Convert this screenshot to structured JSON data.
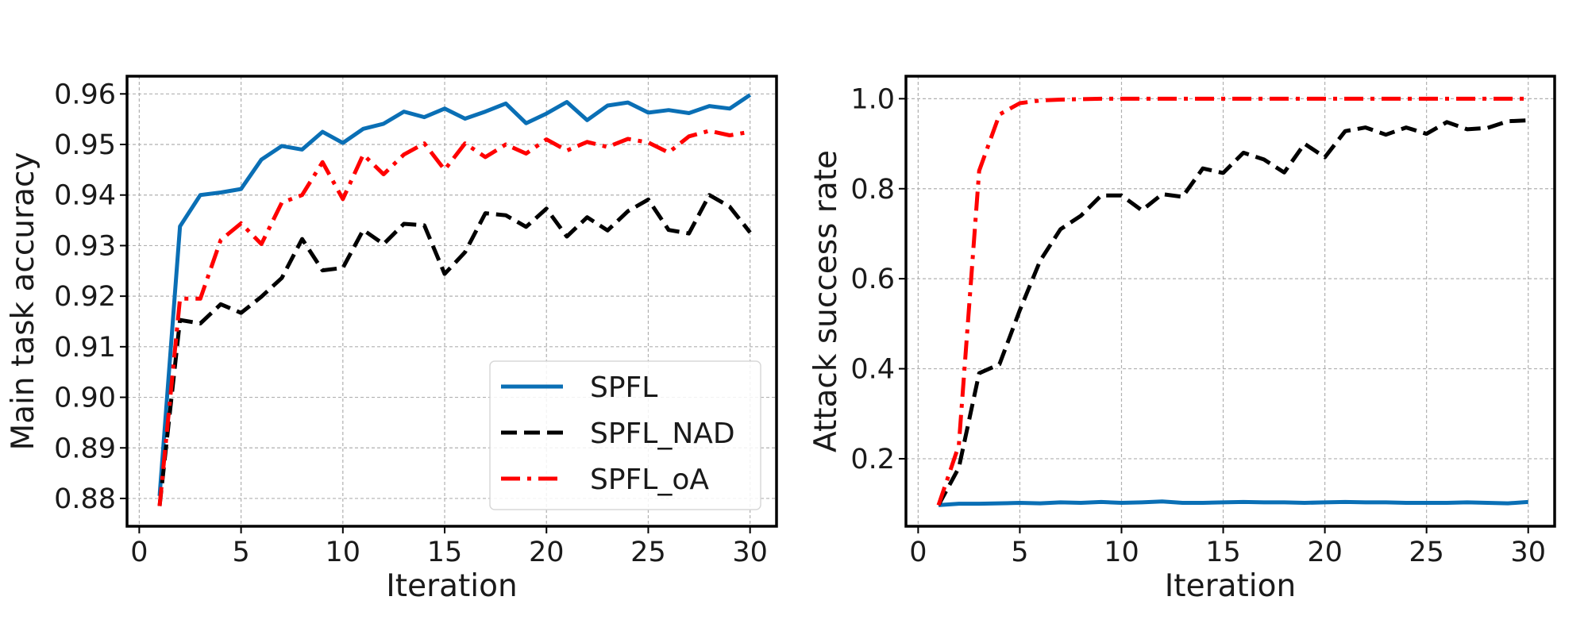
{
  "chart_data": [
    {
      "type": "line",
      "xlabel": "Iteration",
      "ylabel": "Main task accuracy",
      "xlim": [
        -0.6,
        31.3
      ],
      "ylim": [
        0.8745,
        0.9635
      ],
      "xticks": [
        0,
        5,
        10,
        15,
        20,
        25,
        30
      ],
      "yticks": [
        0.88,
        0.89,
        0.9,
        0.91,
        0.92,
        0.93,
        0.94,
        0.95,
        0.96
      ],
      "ytick_labels": [
        "0.88",
        "0.89",
        "0.90",
        "0.91",
        "0.92",
        "0.93",
        "0.94",
        "0.95",
        "0.96"
      ],
      "grid": true,
      "legend_position": "lower-right",
      "x": [
        1,
        2,
        3,
        4,
        5,
        6,
        7,
        8,
        9,
        10,
        11,
        12,
        13,
        14,
        15,
        16,
        17,
        18,
        19,
        20,
        21,
        22,
        23,
        24,
        25,
        26,
        27,
        28,
        29,
        30
      ],
      "series": [
        {
          "name": "SPFL",
          "color": "#0a6fb5",
          "dash": "solid",
          "values": [
            0.8805,
            0.9338,
            0.94,
            0.9405,
            0.9412,
            0.947,
            0.9497,
            0.949,
            0.9525,
            0.9503,
            0.9531,
            0.9541,
            0.9565,
            0.9554,
            0.9571,
            0.9551,
            0.9565,
            0.9581,
            0.9542,
            0.9561,
            0.9584,
            0.9548,
            0.9577,
            0.9583,
            0.9563,
            0.9568,
            0.9562,
            0.9576,
            0.9571,
            0.9598
          ]
        },
        {
          "name": "SPFL_NAD",
          "color": "#000000",
          "dash": "dashed",
          "values": [
            0.8785,
            0.9153,
            0.9146,
            0.9184,
            0.9167,
            0.9199,
            0.9236,
            0.9313,
            0.9251,
            0.9256,
            0.9331,
            0.9303,
            0.9343,
            0.934,
            0.9244,
            0.9287,
            0.9364,
            0.936,
            0.9337,
            0.9373,
            0.9318,
            0.9356,
            0.933,
            0.9368,
            0.9391,
            0.9331,
            0.9324,
            0.94,
            0.9377,
            0.9326
          ]
        },
        {
          "name": "SPFL_oA",
          "color": "#ff0000",
          "dash": "dashdot",
          "values": [
            0.8785,
            0.9195,
            0.9195,
            0.9311,
            0.9344,
            0.9303,
            0.9385,
            0.94,
            0.9465,
            0.9392,
            0.948,
            0.9441,
            0.948,
            0.9502,
            0.945,
            0.9502,
            0.9475,
            0.95,
            0.9482,
            0.951,
            0.9488,
            0.9505,
            0.9495,
            0.9511,
            0.9504,
            0.9484,
            0.9516,
            0.9527,
            0.9518,
            0.9525
          ]
        }
      ]
    },
    {
      "type": "line",
      "xlabel": "Iteration",
      "ylabel": "Attack success rate",
      "xlim": [
        -0.6,
        31.3
      ],
      "ylim": [
        0.05,
        1.05
      ],
      "xticks": [
        0,
        5,
        10,
        15,
        20,
        25,
        30
      ],
      "yticks": [
        0.2,
        0.4,
        0.6,
        0.8,
        1.0
      ],
      "ytick_labels": [
        "0.2",
        "0.4",
        "0.6",
        "0.8",
        "1.0"
      ],
      "grid": true,
      "x": [
        1,
        2,
        3,
        4,
        5,
        6,
        7,
        8,
        9,
        10,
        11,
        12,
        13,
        14,
        15,
        16,
        17,
        18,
        19,
        20,
        21,
        22,
        23,
        24,
        25,
        26,
        27,
        28,
        29,
        30
      ],
      "series": [
        {
          "name": "SPFL",
          "color": "#0a6fb5",
          "dash": "solid",
          "values": [
            0.097,
            0.1,
            0.1,
            0.101,
            0.102,
            0.101,
            0.103,
            0.102,
            0.104,
            0.102,
            0.103,
            0.105,
            0.102,
            0.102,
            0.103,
            0.104,
            0.103,
            0.103,
            0.102,
            0.103,
            0.104,
            0.103,
            0.103,
            0.102,
            0.102,
            0.102,
            0.103,
            0.102,
            0.101,
            0.104
          ]
        },
        {
          "name": "SPFL_NAD",
          "color": "#000000",
          "dash": "dashed",
          "values": [
            0.097,
            0.18,
            0.39,
            0.41,
            0.53,
            0.64,
            0.71,
            0.74,
            0.785,
            0.785,
            0.752,
            0.788,
            0.782,
            0.845,
            0.835,
            0.88,
            0.865,
            0.836,
            0.9,
            0.87,
            0.928,
            0.936,
            0.92,
            0.936,
            0.922,
            0.948,
            0.932,
            0.935,
            0.95,
            0.952
          ]
        },
        {
          "name": "SPFL_oA",
          "color": "#ff0000",
          "dash": "dashdot",
          "values": [
            0.097,
            0.23,
            0.84,
            0.965,
            0.99,
            0.996,
            0.998,
            0.999,
            1.0,
            1.0,
            1.0,
            1.0,
            1.0,
            1.0,
            1.0,
            1.0,
            1.0,
            1.0,
            1.0,
            1.0,
            1.0,
            1.0,
            1.0,
            1.0,
            1.0,
            1.0,
            1.0,
            1.0,
            1.0,
            1.0
          ]
        }
      ]
    }
  ]
}
